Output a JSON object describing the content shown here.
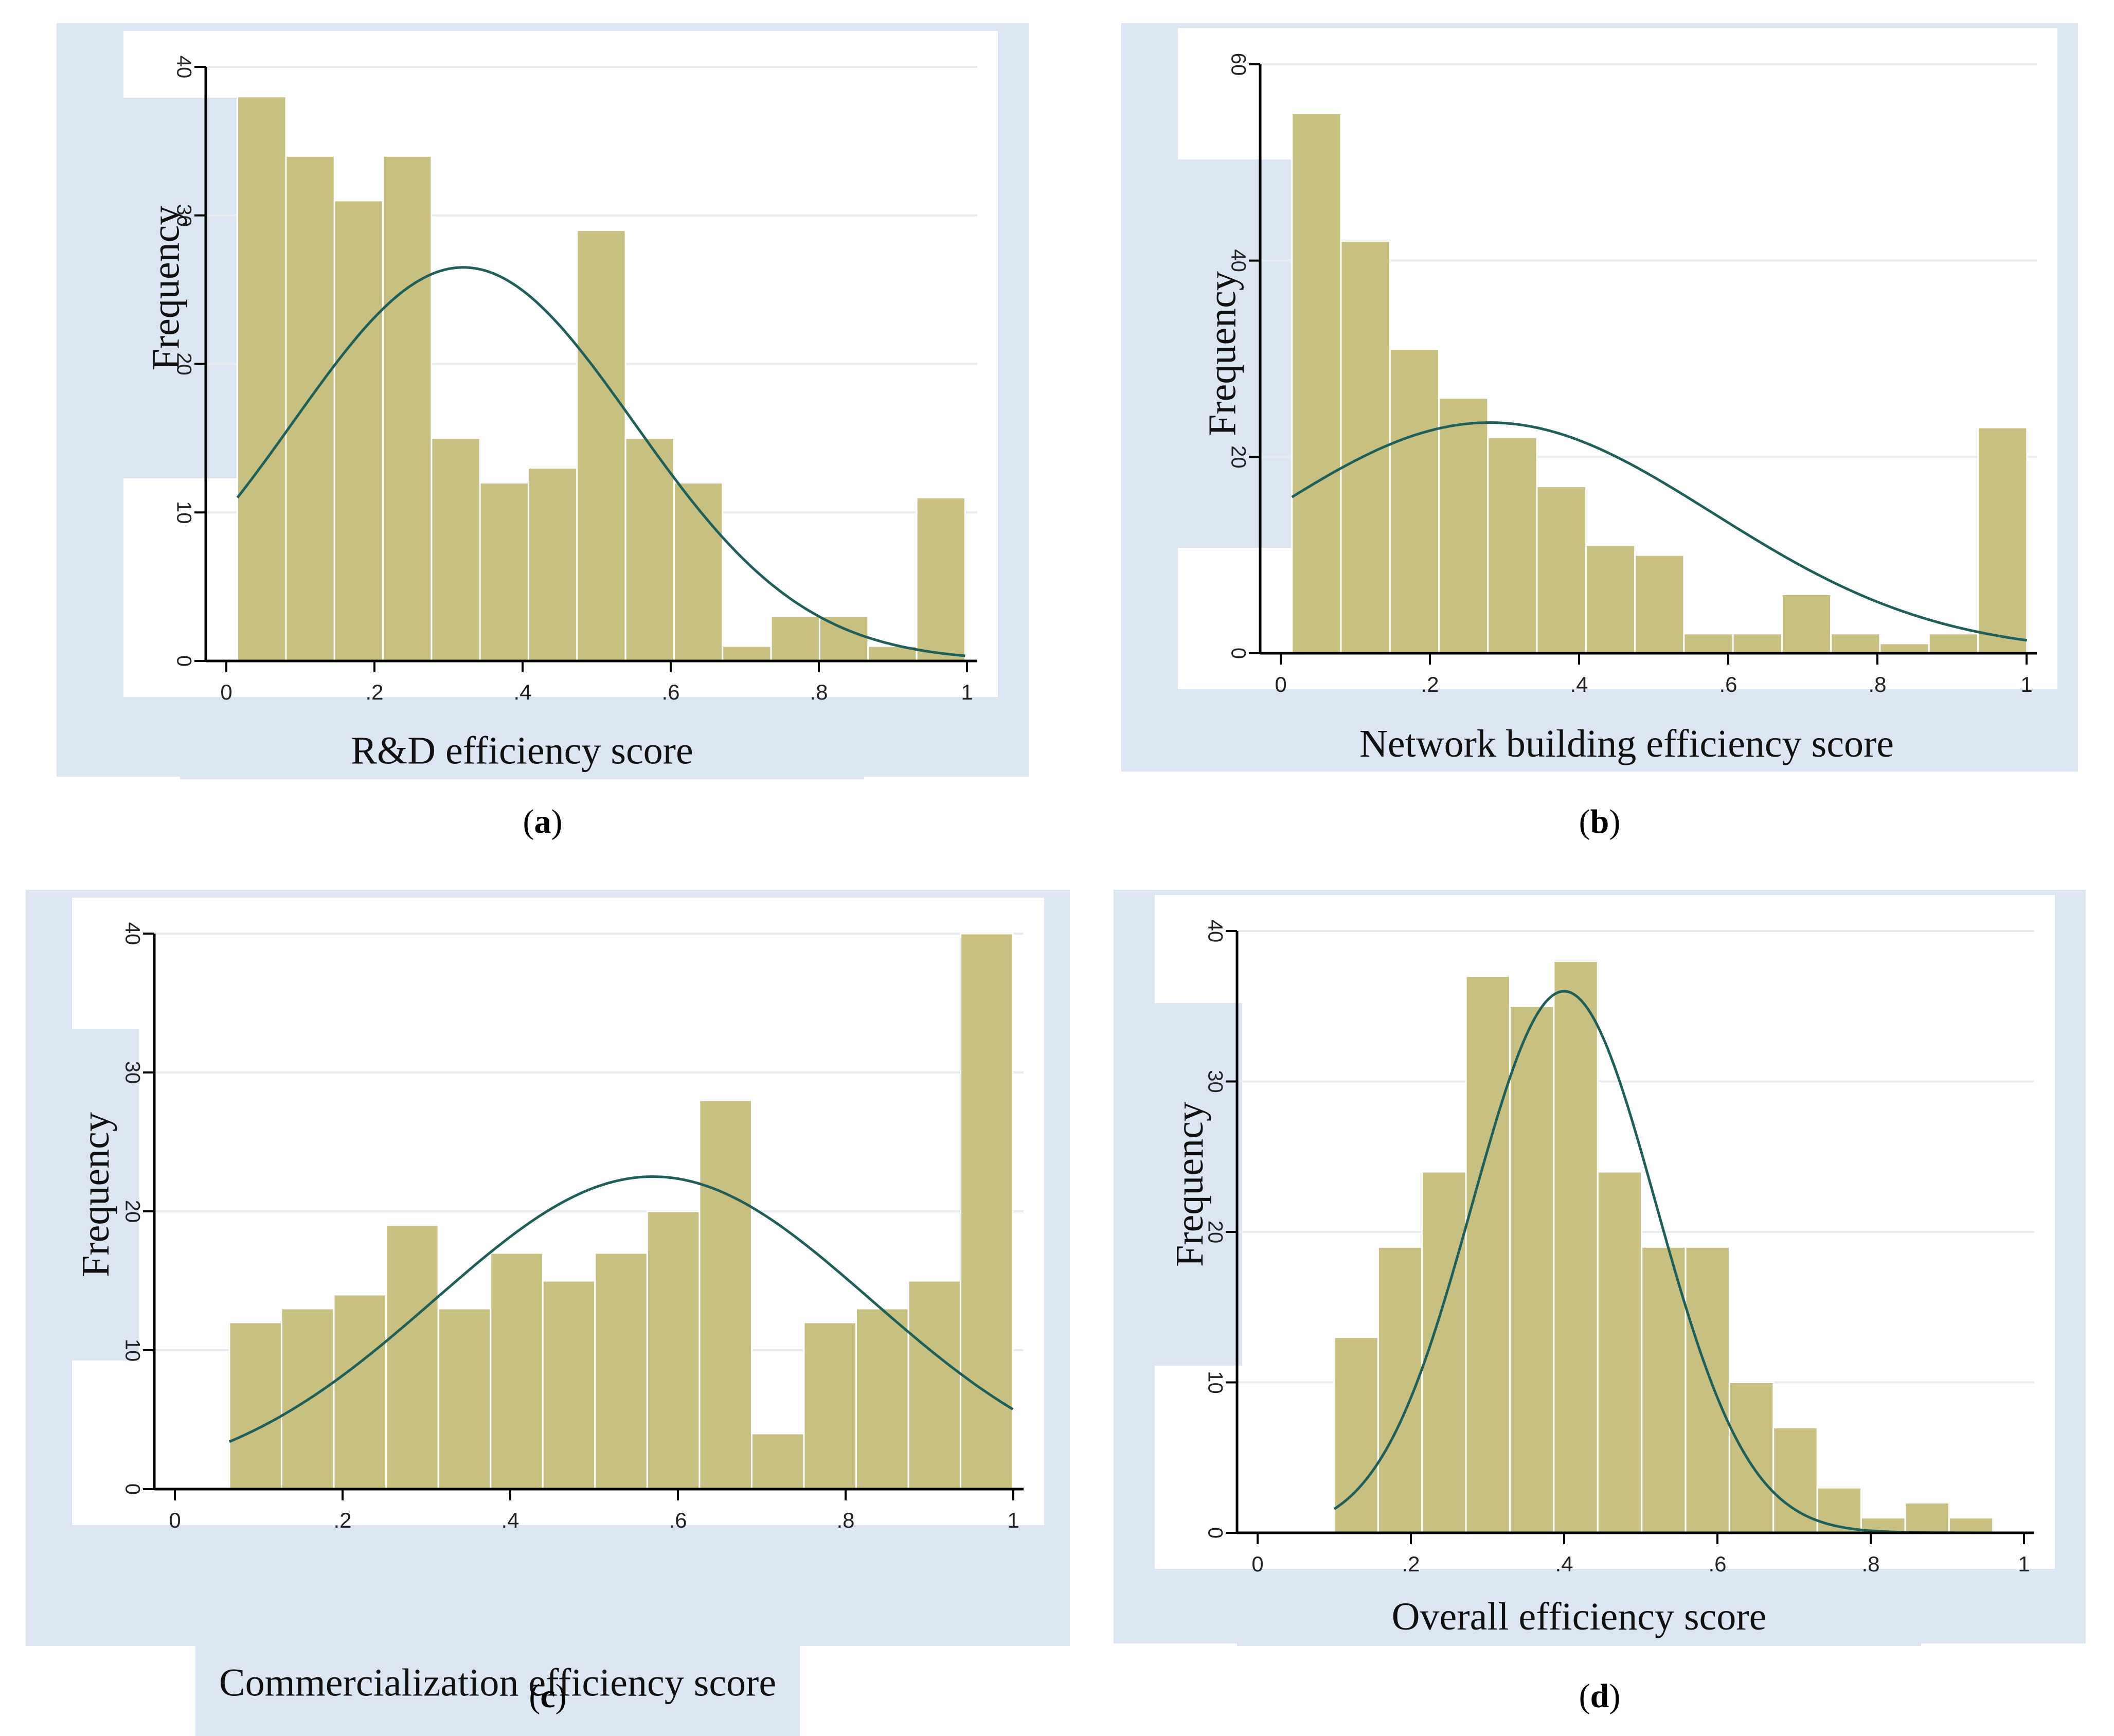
{
  "colors": {
    "frame": "#dce6f2",
    "plot_bg": "#ffffff",
    "grid": "#e6ecef",
    "bar_fill": "#c8c080",
    "bar_stroke": "#ffffff",
    "curve": "#1f5f5a",
    "axis": "#000000",
    "tick_text": "#222222"
  },
  "captions": [
    {
      "open": "(",
      "letter": "a",
      "close": ")"
    },
    {
      "open": "(",
      "letter": "b",
      "close": ")"
    },
    {
      "open": "(",
      "letter": "c",
      "close": ")"
    },
    {
      "open": "(",
      "letter": "d",
      "close": ")"
    }
  ],
  "chart_data": [
    {
      "type": "bar",
      "subtype": "histogram",
      "title": "",
      "xlabel": "R&D efficiency score",
      "ylabel": "Frequency",
      "xlim": [
        0,
        1
      ],
      "ylim": [
        0,
        40
      ],
      "xticks": [
        0,
        0.2,
        0.4,
        0.6,
        0.8,
        1
      ],
      "xtick_labels": [
        "0",
        ".2",
        ".4",
        ".6",
        ".8",
        "1"
      ],
      "yticks": [
        0,
        10,
        20,
        30,
        40
      ],
      "ytick_labels": [
        "0",
        "10",
        "20",
        "30",
        "40"
      ],
      "grid": true,
      "bins_start": 0.015,
      "bin_width": 0.0655,
      "values": [
        38,
        34,
        31,
        34,
        15,
        12,
        13,
        29,
        15,
        12,
        1,
        3,
        3,
        1,
        11
      ],
      "normal_curve": {
        "mean": 0.32,
        "sd": 0.23,
        "peak": 26.5
      }
    },
    {
      "type": "bar",
      "subtype": "histogram",
      "title": "",
      "xlabel": "Network building efficiency score",
      "ylabel": "Frequency",
      "xlim": [
        0,
        1
      ],
      "ylim": [
        0,
        60
      ],
      "xticks": [
        0,
        0.2,
        0.4,
        0.6,
        0.8,
        1
      ],
      "xtick_labels": [
        "0",
        ".2",
        ".4",
        ".6",
        ".8",
        "1"
      ],
      "yticks": [
        0,
        20,
        40,
        60
      ],
      "ytick_labels": [
        "0",
        "20",
        "40",
        "60"
      ],
      "grid": true,
      "bins_start": 0.015,
      "bin_width": 0.0657,
      "values": [
        55,
        42,
        31,
        26,
        22,
        17,
        11,
        10,
        2,
        2,
        6,
        2,
        1,
        2,
        23
      ],
      "normal_curve": {
        "mean": 0.28,
        "sd": 0.3,
        "peak": 23.5
      }
    },
    {
      "type": "bar",
      "subtype": "histogram",
      "title": "",
      "xlabel": "Commercialization efficiency score",
      "ylabel": "Frequency",
      "xlim": [
        0,
        1
      ],
      "ylim": [
        0,
        40
      ],
      "xticks": [
        0,
        0.2,
        0.4,
        0.6,
        0.8,
        1
      ],
      "xtick_labels": [
        "0",
        ".2",
        ".4",
        ".6",
        ".8",
        "1"
      ],
      "yticks": [
        0,
        10,
        20,
        30,
        40
      ],
      "ytick_labels": [
        "0",
        "10",
        "20",
        "30",
        "40"
      ],
      "grid": true,
      "bins_start": 0.065,
      "bin_width": 0.0623,
      "values": [
        12,
        13,
        14,
        19,
        13,
        17,
        15,
        17,
        20,
        28,
        4,
        12,
        13,
        15,
        40
      ],
      "normal_curve": {
        "mean": 0.57,
        "sd": 0.26,
        "peak": 22.5
      }
    },
    {
      "type": "bar",
      "subtype": "histogram",
      "title": "",
      "xlabel": "Overall efficiency score",
      "ylabel": "Frequency",
      "xlim": [
        0,
        1
      ],
      "ylim": [
        0,
        40
      ],
      "xticks": [
        0,
        0.2,
        0.4,
        0.6,
        0.8,
        1
      ],
      "xtick_labels": [
        "0",
        ".2",
        ".4",
        ".6",
        ".8",
        "1"
      ],
      "yticks": [
        0,
        10,
        20,
        30,
        40
      ],
      "ytick_labels": [
        "0",
        "10",
        "20",
        "30",
        "40"
      ],
      "grid": true,
      "bins_start": 0.1,
      "bin_width": 0.0573,
      "values": [
        13,
        19,
        24,
        37,
        35,
        38,
        24,
        19,
        19,
        10,
        7,
        3,
        1,
        2,
        1
      ],
      "normal_curve": {
        "mean": 0.4,
        "sd": 0.12,
        "peak": 36
      }
    }
  ]
}
